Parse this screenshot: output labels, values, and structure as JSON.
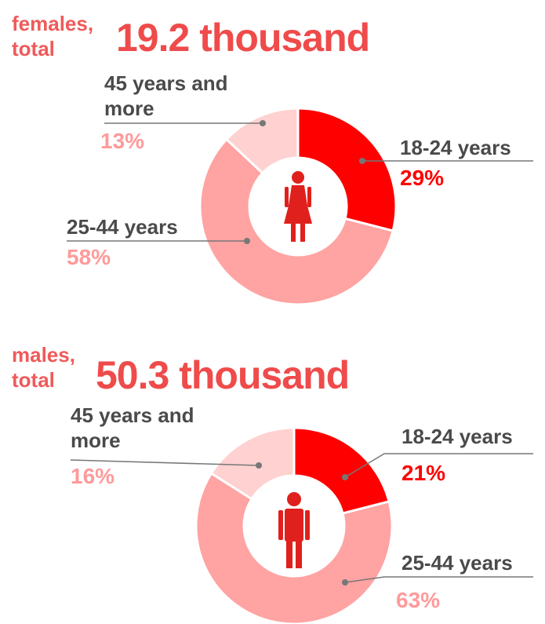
{
  "chart_data": [
    {
      "type": "pie",
      "donut": true,
      "subtitle": "females, total",
      "title": "19.2 thousand",
      "categories": [
        "18-24 years",
        "25-44 years",
        "45 years and more"
      ],
      "values": [
        29,
        58,
        13
      ],
      "value_labels": [
        "29%",
        "58%",
        "13%"
      ],
      "colors": [
        "#ff0000",
        "#ffa3a3",
        "#ffd1d1"
      ],
      "label_colors": [
        "#ff0000",
        "#ff9a9a",
        "#ff9a9a"
      ]
    },
    {
      "type": "pie",
      "donut": true,
      "subtitle": "males, total",
      "title": "50.3 thousand",
      "categories": [
        "18-24 years",
        "25-44 years",
        "45 years and more"
      ],
      "values": [
        21,
        63,
        16
      ],
      "value_labels": [
        "21%",
        "63%",
        "16%"
      ],
      "colors": [
        "#ff0000",
        "#ffa3a3",
        "#ffd1d1"
      ],
      "label_colors": [
        "#ff0000",
        "#ff9a9a",
        "#ff9a9a"
      ]
    }
  ]
}
